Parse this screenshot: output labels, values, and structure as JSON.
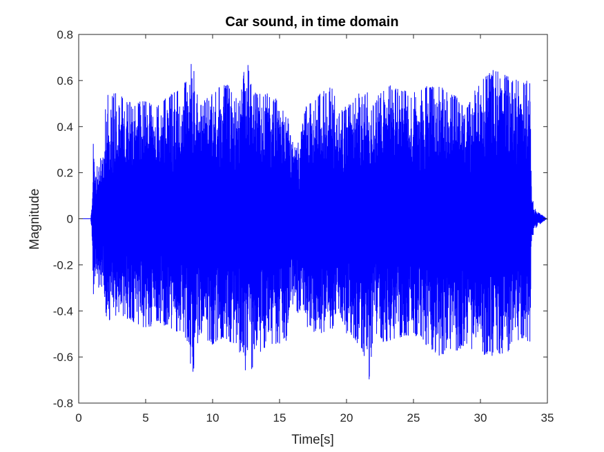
{
  "chart_data": {
    "type": "line",
    "title": "Car sound, in time domain",
    "xlabel": "Time[s]",
    "ylabel": "Magnitude",
    "xlim": [
      0,
      35
    ],
    "ylim": [
      -0.8,
      0.8
    ],
    "xticks": [
      "0",
      "5",
      "10",
      "15",
      "20",
      "25",
      "30",
      "35"
    ],
    "yticks": [
      "0.8",
      "0.6",
      "0.4",
      "0.2",
      "0",
      "-0.2",
      "-0.4",
      "-0.6",
      "-0.8"
    ],
    "grid": false,
    "legend": "none",
    "series": [
      {
        "color": "#0000ff",
        "envelope": {
          "t": [
            0,
            0.9,
            1.0,
            1.1,
            1.2,
            1.5,
            1.9,
            2.0,
            2.1,
            3,
            4,
            5,
            6,
            7,
            8,
            8.5,
            9,
            10,
            11,
            12,
            12.5,
            13,
            14,
            15,
            15.4,
            15.7,
            16.2,
            16.5,
            17,
            18,
            19,
            19.3,
            20,
            21,
            21.7,
            22,
            23,
            24,
            25,
            26,
            27,
            28,
            29,
            30,
            31,
            32,
            33,
            33.7,
            33.8,
            34,
            34.3,
            35
          ],
          "upper": [
            0,
            0,
            0.08,
            0.36,
            0.2,
            0.26,
            0.27,
            0.5,
            0.55,
            0.55,
            0.5,
            0.52,
            0.5,
            0.55,
            0.6,
            0.7,
            0.5,
            0.55,
            0.6,
            0.5,
            0.72,
            0.55,
            0.55,
            0.52,
            0.55,
            0.4,
            0.3,
            0.35,
            0.5,
            0.55,
            0.58,
            0.45,
            0.5,
            0.55,
            0.56,
            0.5,
            0.6,
            0.56,
            0.55,
            0.58,
            0.6,
            0.54,
            0.5,
            0.6,
            0.65,
            0.62,
            0.6,
            0.6,
            0.15,
            0.05,
            0.03,
            0
          ],
          "lower": [
            0,
            0,
            -0.08,
            -0.38,
            -0.25,
            -0.3,
            -0.3,
            -0.42,
            -0.45,
            -0.42,
            -0.45,
            -0.48,
            -0.45,
            -0.5,
            -0.52,
            -0.69,
            -0.5,
            -0.55,
            -0.52,
            -0.58,
            -0.69,
            -0.65,
            -0.55,
            -0.55,
            -0.6,
            -0.4,
            -0.38,
            -0.45,
            -0.48,
            -0.5,
            -0.48,
            -0.38,
            -0.5,
            -0.55,
            -0.71,
            -0.5,
            -0.55,
            -0.52,
            -0.5,
            -0.55,
            -0.6,
            -0.58,
            -0.55,
            -0.6,
            -0.6,
            -0.58,
            -0.52,
            -0.55,
            -0.12,
            -0.05,
            -0.03,
            0
          ]
        }
      }
    ]
  }
}
